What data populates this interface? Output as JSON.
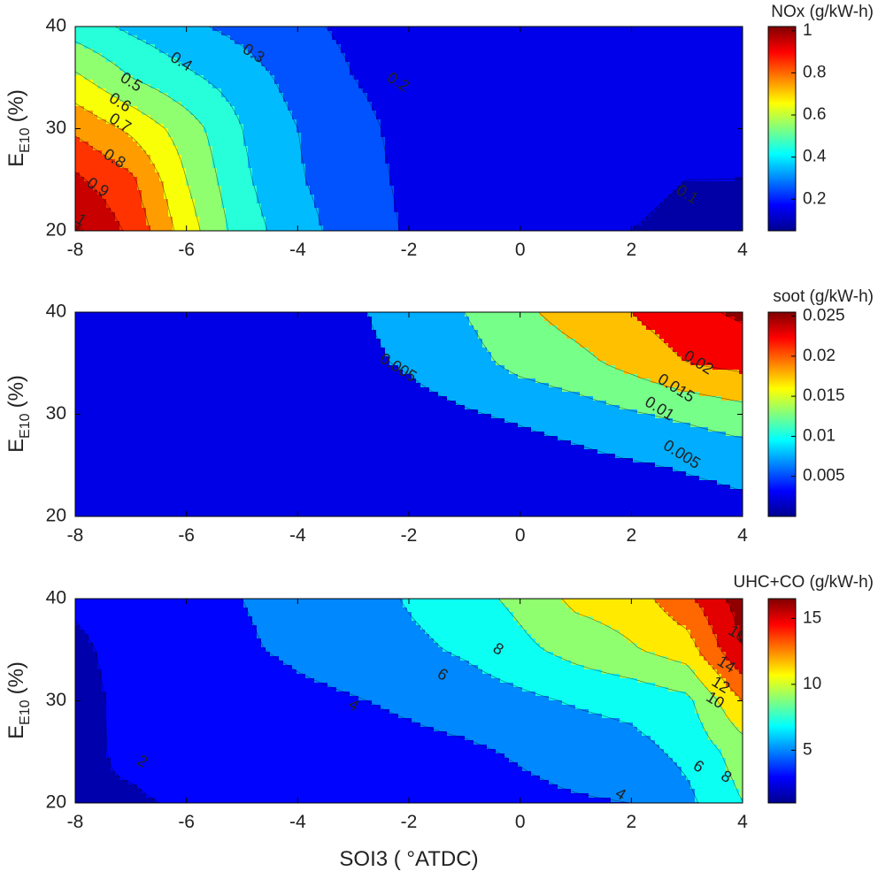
{
  "chart_data": [
    {
      "type": "contour",
      "title": "NOx (g/kW-h)",
      "xlabel": "",
      "ylabel_main": "E",
      "ylabel_sub": "E10",
      "ylabel_unit": "(%)",
      "xlim": [
        -8,
        4
      ],
      "ylim": [
        20,
        40
      ],
      "xticks": [
        "-8",
        "-6",
        "-4",
        "-2",
        "0",
        "2",
        "4"
      ],
      "yticks": [
        "20",
        "30",
        "40"
      ],
      "colorbar": {
        "range": [
          0.05,
          1.02
        ],
        "ticks": [
          "0.2",
          "0.4",
          "0.6",
          "0.8",
          "1"
        ],
        "tick_values": [
          0.2,
          0.4,
          0.6,
          0.8,
          1.0
        ]
      },
      "levels": [
        0.1,
        0.2,
        0.3,
        0.4,
        0.5,
        0.6,
        0.7,
        0.8,
        0.9,
        1.0
      ],
      "x": [
        -8,
        -7,
        -6,
        -5,
        -4,
        -3,
        -2,
        -1,
        0,
        1,
        2,
        3,
        4
      ],
      "y": [
        20,
        25,
        30,
        35,
        40
      ],
      "z": [
        [
          1.02,
          0.88,
          0.65,
          0.45,
          0.34,
          0.25,
          0.19,
          0.14,
          0.12,
          0.11,
          0.1,
          0.09,
          0.08
        ],
        [
          0.92,
          0.82,
          0.6,
          0.42,
          0.31,
          0.24,
          0.18,
          0.14,
          0.12,
          0.11,
          0.11,
          0.1,
          0.1
        ],
        [
          0.78,
          0.68,
          0.55,
          0.4,
          0.3,
          0.23,
          0.17,
          0.14,
          0.12,
          0.12,
          0.11,
          0.11,
          0.11
        ],
        [
          0.62,
          0.5,
          0.42,
          0.35,
          0.26,
          0.2,
          0.16,
          0.13,
          0.12,
          0.12,
          0.11,
          0.11,
          0.11
        ],
        [
          0.45,
          0.38,
          0.32,
          0.27,
          0.22,
          0.18,
          0.15,
          0.13,
          0.12,
          0.11,
          0.11,
          0.11,
          0.11
        ]
      ],
      "contour_labels": [
        {
          "text": "1",
          "x": -7.9,
          "y": 21.0
        },
        {
          "text": "0.9",
          "x": -7.6,
          "y": 24.2
        },
        {
          "text": "0.8",
          "x": -7.3,
          "y": 27.0
        },
        {
          "text": "0.7",
          "x": -7.2,
          "y": 30.5
        },
        {
          "text": "0.6",
          "x": -7.2,
          "y": 32.5
        },
        {
          "text": "0.5",
          "x": -7.0,
          "y": 34.5
        },
        {
          "text": "0.4",
          "x": -6.1,
          "y": 36.5
        },
        {
          "text": "0.3",
          "x": -4.8,
          "y": 37.3
        },
        {
          "text": "0.2",
          "x": -2.2,
          "y": 34.5
        },
        {
          "text": "0.1",
          "x": 3.0,
          "y": 23.5
        }
      ]
    },
    {
      "type": "contour",
      "title": "soot (g/kW-h)",
      "xlabel": "",
      "ylabel_main": "E",
      "ylabel_sub": "E10",
      "ylabel_unit": "(%)",
      "xlim": [
        -8,
        4
      ],
      "ylim": [
        20,
        40
      ],
      "xticks": [
        "-8",
        "-6",
        "-4",
        "-2",
        "0",
        "2",
        "4"
      ],
      "yticks": [
        "20",
        "30",
        "40"
      ],
      "colorbar": {
        "range": [
          0.0,
          0.0255
        ],
        "ticks": [
          "0.005",
          "0.01",
          "0.015",
          "0.02",
          "0.025"
        ],
        "tick_values": [
          0.005,
          0.01,
          0.015,
          0.02,
          0.025
        ]
      },
      "levels": [
        0.005,
        0.01,
        0.015,
        0.02,
        0.025
      ],
      "x": [
        -8,
        -7,
        -6,
        -5,
        -4,
        -3,
        -2,
        -1,
        0,
        1,
        2,
        3,
        4
      ],
      "y": [
        20,
        25,
        30,
        35,
        40
      ],
      "z": [
        [
          0.0005,
          0.0005,
          0.0005,
          0.0005,
          0.0005,
          0.0005,
          0.0005,
          0.0006,
          0.0008,
          0.0012,
          0.0018,
          0.0025,
          0.0035
        ],
        [
          0.0005,
          0.0005,
          0.0005,
          0.0005,
          0.0006,
          0.0007,
          0.001,
          0.0015,
          0.0022,
          0.0032,
          0.0045,
          0.0055,
          0.0065
        ],
        [
          0.0005,
          0.0005,
          0.0006,
          0.0008,
          0.0012,
          0.002,
          0.0032,
          0.0045,
          0.0058,
          0.0075,
          0.0095,
          0.011,
          0.013
        ],
        [
          0.0005,
          0.0006,
          0.0008,
          0.0015,
          0.0025,
          0.004,
          0.0055,
          0.008,
          0.0115,
          0.0135,
          0.0165,
          0.02,
          0.0215
        ],
        [
          0.0006,
          0.0008,
          0.0012,
          0.002,
          0.003,
          0.0045,
          0.0065,
          0.01,
          0.014,
          0.017,
          0.02,
          0.0235,
          0.026
        ]
      ],
      "contour_labels": [
        {
          "text": "0.005",
          "x": -2.2,
          "y": 34.5
        },
        {
          "text": "0.02",
          "x": 3.2,
          "y": 35.0
        },
        {
          "text": "0.015",
          "x": 2.8,
          "y": 32.5
        },
        {
          "text": "0.01",
          "x": 2.5,
          "y": 30.5
        },
        {
          "text": "0.005",
          "x": 2.9,
          "y": 26.0
        }
      ]
    },
    {
      "type": "contour",
      "title": "UHC+CO (g/kW-h)",
      "xlabel": "SOI3 ( °ATDC)",
      "ylabel_main": "E",
      "ylabel_sub": "E10",
      "ylabel_unit": "(%)",
      "xlim": [
        -8,
        4
      ],
      "ylim": [
        20,
        40
      ],
      "xticks": [
        "-8",
        "-6",
        "-4",
        "-2",
        "0",
        "2",
        "4"
      ],
      "yticks": [
        "20",
        "30",
        "40"
      ],
      "colorbar": {
        "range": [
          1.0,
          16.5
        ],
        "ticks": [
          "5",
          "10",
          "15"
        ],
        "tick_values": [
          5,
          10,
          15
        ]
      },
      "levels": [
        2,
        4,
        6,
        8,
        10,
        12,
        14,
        16
      ],
      "x": [
        -8,
        -7,
        -6,
        -5,
        -4,
        -3,
        -2,
        -1,
        0,
        1,
        2,
        3,
        4
      ],
      "y": [
        20,
        25,
        30,
        35,
        40
      ],
      "z": [
        [
          2.0,
          1.8,
          2.2,
          2.5,
          2.7,
          2.8,
          3.0,
          3.2,
          3.5,
          3.8,
          4.0,
          5.5,
          8.0
        ],
        [
          1.6,
          2.3,
          2.8,
          3.0,
          3.2,
          3.3,
          3.5,
          3.7,
          4.2,
          4.8,
          5.3,
          6.5,
          9.0
        ],
        [
          1.4,
          2.5,
          3.0,
          3.2,
          3.6,
          3.9,
          4.3,
          4.8,
          5.5,
          6.2,
          6.6,
          7.5,
          12.0
        ],
        [
          1.6,
          2.7,
          3.2,
          3.8,
          4.3,
          4.8,
          5.5,
          6.3,
          7.5,
          8.7,
          9.8,
          11.0,
          16.0
        ],
        [
          2.3,
          3.0,
          3.5,
          4.0,
          4.5,
          5.0,
          6.2,
          7.2,
          8.5,
          10.5,
          11.0,
          13.5,
          17.0
        ]
      ],
      "contour_labels": [
        {
          "text": "2",
          "x": -6.8,
          "y": 24.0
        },
        {
          "text": "4",
          "x": -3.0,
          "y": 29.5
        },
        {
          "text": "6",
          "x": -1.4,
          "y": 32.5
        },
        {
          "text": "8",
          "x": -0.4,
          "y": 35.0
        },
        {
          "text": "4",
          "x": 1.8,
          "y": 20.8
        },
        {
          "text": "6",
          "x": 3.2,
          "y": 23.5
        },
        {
          "text": "8",
          "x": 3.7,
          "y": 22.5
        },
        {
          "text": "10",
          "x": 3.5,
          "y": 30.0
        },
        {
          "text": "12",
          "x": 3.6,
          "y": 31.5
        },
        {
          "text": "14",
          "x": 3.7,
          "y": 33.5
        },
        {
          "text": "16",
          "x": 3.9,
          "y": 36.5
        }
      ]
    }
  ],
  "colors": {
    "axis": "#000000",
    "text": "#222222",
    "contour_line": "#000000"
  }
}
